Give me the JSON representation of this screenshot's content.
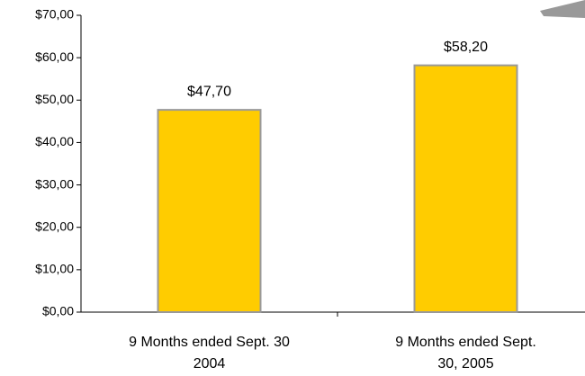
{
  "chart_data": {
    "type": "bar",
    "categories": [
      "9 Months ended Sept. 30 2004",
      "9 Months ended Sept. 30, 2005"
    ],
    "values": [
      47.7,
      58.2
    ],
    "value_labels": [
      "$47,70",
      "$58,20"
    ],
    "color": "#ffcc00",
    "ylim": [
      0,
      70
    ],
    "yticks": [
      {
        "value": 0,
        "label": "$0,00"
      },
      {
        "value": 10,
        "label": "$10,00"
      },
      {
        "value": 20,
        "label": "$20,00"
      },
      {
        "value": 30,
        "label": "$30,00"
      },
      {
        "value": 40,
        "label": "$40,00"
      },
      {
        "value": 50,
        "label": "$50,00"
      },
      {
        "value": 60,
        "label": "$60,00"
      },
      {
        "value": 70,
        "label": "$70,00"
      }
    ],
    "grid": false
  }
}
